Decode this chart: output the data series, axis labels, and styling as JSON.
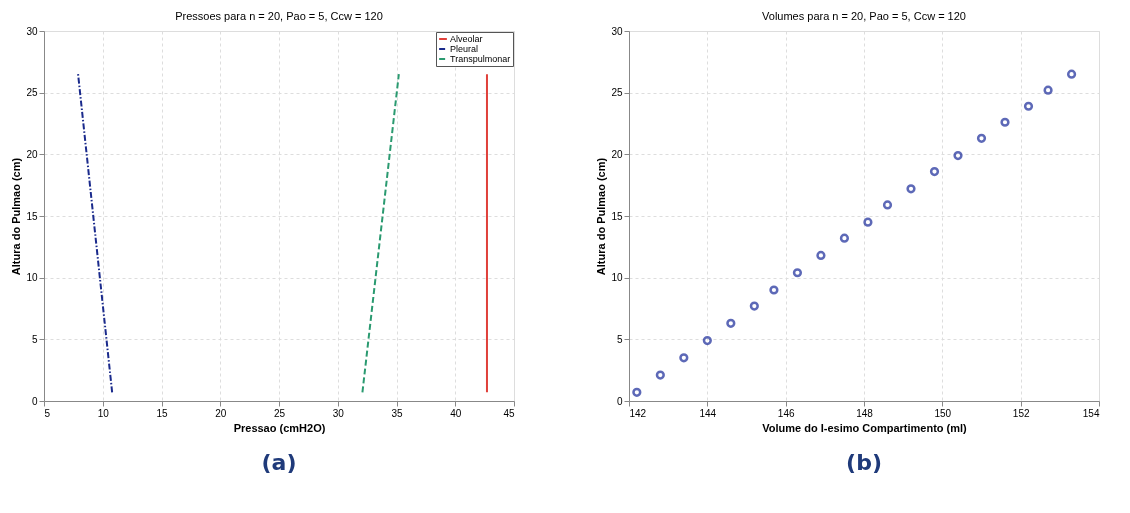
{
  "chart_data": [
    {
      "type": "line",
      "title": "Pressoes para n = 20, Pao = 5, Ccw = 120",
      "xlabel": "Pressao (cmH2O)",
      "ylabel": "Altura do Pulmao (cm)",
      "series": [
        {
          "name": "Alveolar",
          "color": "#e0403a",
          "line_style": "solid",
          "x": [
            42.7,
            42.7
          ],
          "values": [
            0.7,
            26.5
          ]
        },
        {
          "name": "Pleural",
          "color": "#1a2a8c",
          "line_style": "dotted",
          "x": [
            10.8,
            7.9
          ],
          "values": [
            0.7,
            26.5
          ]
        },
        {
          "name": "Transpulmonar",
          "color": "#2a9a70",
          "line_style": "dashed",
          "x": [
            32.1,
            35.2
          ],
          "values": [
            0.7,
            26.5
          ]
        }
      ],
      "xlim": [
        5,
        45
      ],
      "xticks": [
        5,
        10,
        15,
        20,
        25,
        30,
        35,
        40,
        45
      ],
      "ylim": [
        0,
        30
      ],
      "yticks": [
        0,
        5,
        10,
        15,
        20,
        25,
        30
      ],
      "grid": true,
      "legend": "top right",
      "annotations": [
        "(a)"
      ]
    },
    {
      "type": "scatter",
      "title": "Volumes para n = 20, Pao = 5, Ccw = 120",
      "xlabel": "Volume do I-esimo Compartimento (ml)",
      "ylabel": "Altura do Pulmao (cm)",
      "x": [
        142.2,
        142.8,
        143.4,
        144.0,
        144.6,
        145.2,
        145.7,
        146.3,
        146.9,
        147.5,
        148.1,
        148.6,
        149.2,
        149.8,
        150.4,
        151.0,
        151.6,
        152.2,
        152.7,
        153.3
      ],
      "values": [
        0.7,
        2.1,
        3.5,
        4.9,
        6.3,
        7.7,
        9.0,
        10.4,
        11.8,
        13.2,
        14.5,
        15.9,
        17.2,
        18.6,
        19.9,
        21.3,
        22.6,
        23.9,
        25.2,
        26.5
      ],
      "color": "#1a2a9a",
      "marker": "circle",
      "xlim": [
        142,
        154
      ],
      "xticks": [
        142,
        144,
        146,
        148,
        150,
        152,
        154
      ],
      "ylim": [
        0,
        30
      ],
      "yticks": [
        0,
        5,
        10,
        15,
        20,
        25,
        30
      ],
      "grid": true,
      "annotations": [
        "(b)"
      ]
    }
  ]
}
